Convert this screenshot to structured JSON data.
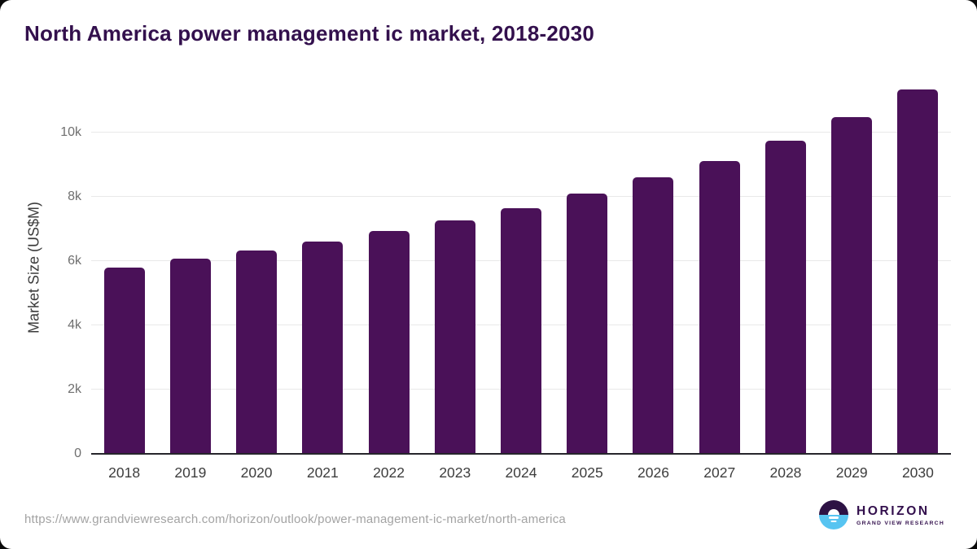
{
  "chart_data": {
    "type": "bar",
    "title": "North America power management ic market, 2018-2030",
    "xlabel": "",
    "ylabel": "Market Size (US$M)",
    "categories": [
      "2018",
      "2019",
      "2020",
      "2021",
      "2022",
      "2023",
      "2024",
      "2025",
      "2026",
      "2027",
      "2028",
      "2029",
      "2030"
    ],
    "values": [
      5810,
      6090,
      6340,
      6620,
      6930,
      7280,
      7660,
      8100,
      8600,
      9110,
      9760,
      10480,
      11340
    ],
    "ylim": [
      0,
      11600
    ],
    "y_ticks": [
      {
        "value": 0,
        "label": "0"
      },
      {
        "value": 2000,
        "label": "2k"
      },
      {
        "value": 4000,
        "label": "4k"
      },
      {
        "value": 6000,
        "label": "6k"
      },
      {
        "value": 8000,
        "label": "8k"
      },
      {
        "value": 10000,
        "label": "10k"
      }
    ],
    "grid": "horizontal-only",
    "legend": "none"
  },
  "footer": {
    "source_url": "https://www.grandviewresearch.com/horizon/outlook/power-management-ic-market/north-america",
    "logo": {
      "wordmark": "HORIZON",
      "subtitle": "GRAND VIEW RESEARCH"
    }
  },
  "colors": {
    "bar_color": "#4a1158",
    "title_color": "#33104d",
    "gridline_color": "#e9e9e9",
    "axis_line_color": "#26252b",
    "tick_label_color": "#6f6f6f",
    "axis_title_color": "#3b3b3b",
    "x_label_color": "#3d3d3d",
    "url_color": "#a3a3a3",
    "logo_purple": "#2d1244",
    "logo_blue": "#57c4f1"
  }
}
